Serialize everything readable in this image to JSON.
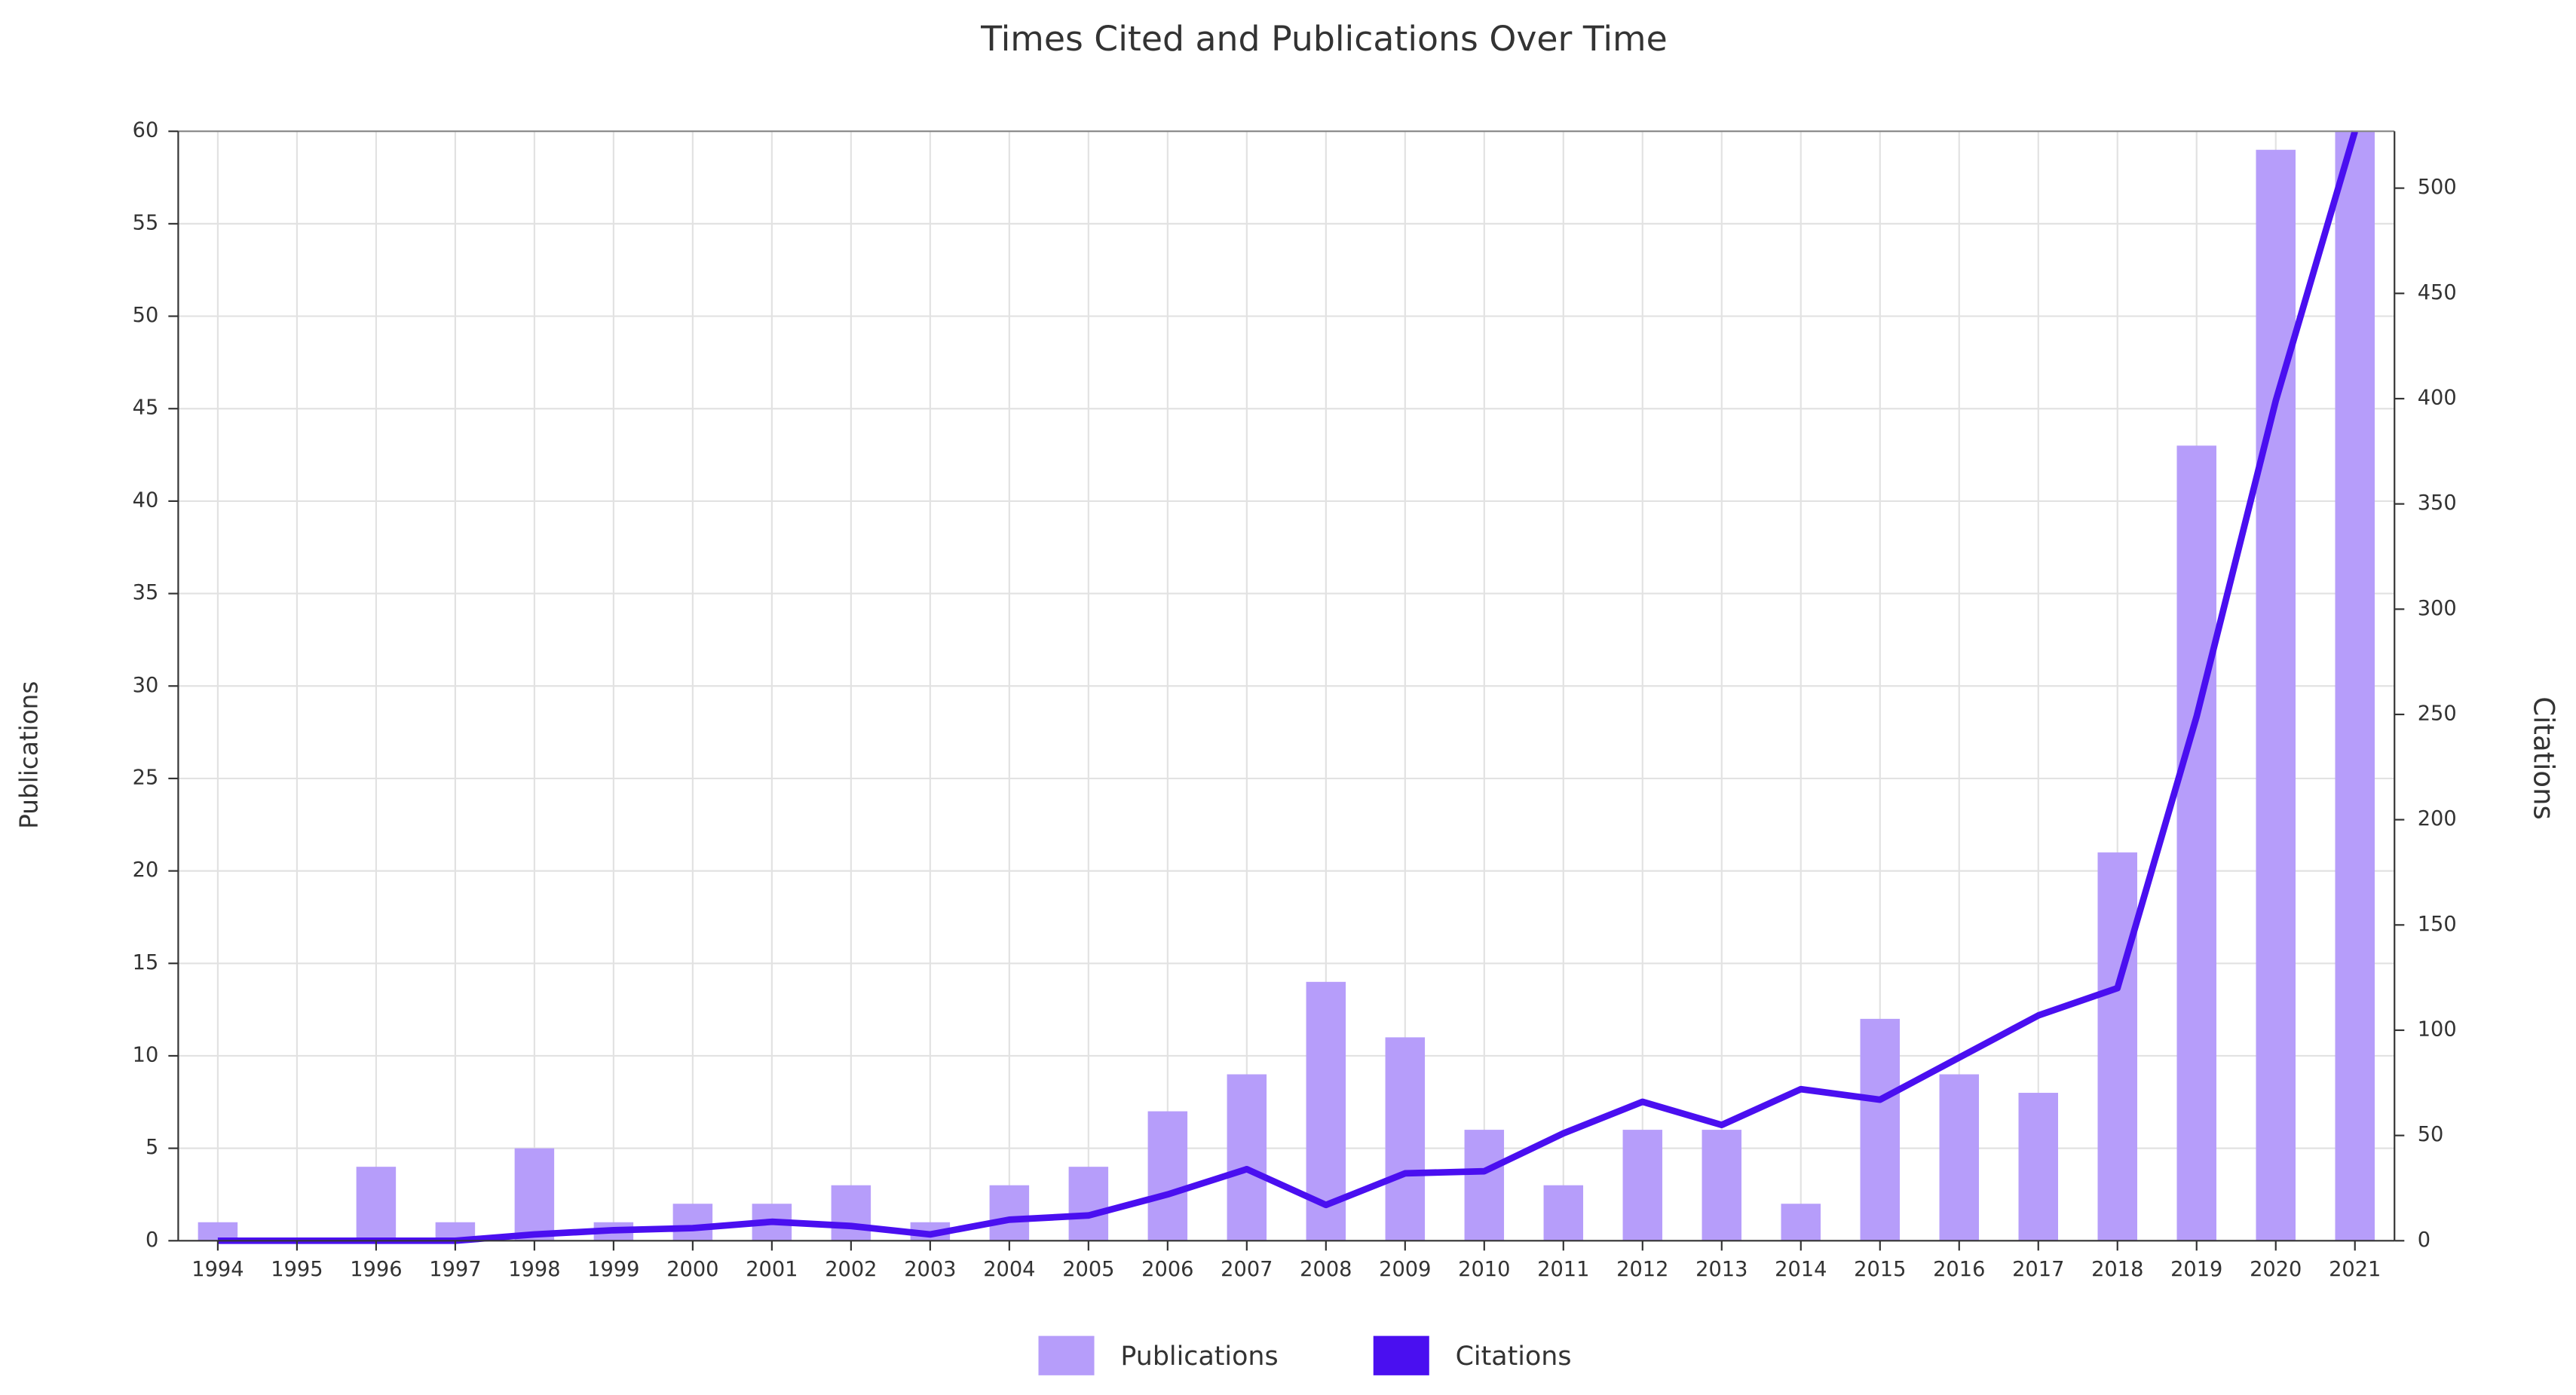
{
  "chart_data": {
    "type": "bar-line",
    "title": "Times Cited and Publications Over Time",
    "ylabel": "Publications",
    "y2label": "Citations",
    "categories": [
      "1994",
      "1995",
      "1996",
      "1997",
      "1998",
      "1999",
      "2000",
      "2001",
      "2002",
      "2003",
      "2004",
      "2005",
      "2006",
      "2007",
      "2008",
      "2009",
      "2010",
      "2011",
      "2012",
      "2013",
      "2014",
      "2015",
      "2016",
      "2017",
      "2018",
      "2019",
      "2020",
      "2021"
    ],
    "series": [
      {
        "name": "Publications",
        "type": "bar",
        "color": "#b69dfa",
        "values": [
          1,
          0,
          4,
          1,
          5,
          1,
          2,
          2,
          3,
          1,
          3,
          4,
          7,
          9,
          14,
          11,
          6,
          3,
          6,
          6,
          2,
          12,
          9,
          8,
          21,
          43,
          59,
          60
        ]
      },
      {
        "name": "Citations",
        "type": "line",
        "axis": "y2",
        "color": "#4a0ff0",
        "values": [
          0,
          0,
          0,
          0,
          3,
          5,
          6,
          9,
          7,
          3,
          10,
          12,
          22,
          34,
          17,
          32,
          33,
          51,
          66,
          55,
          72,
          67,
          87,
          107,
          120,
          249,
          399,
          527
        ]
      }
    ],
    "ylim": [
      0,
      60
    ],
    "yticks": [
      0,
      5,
      10,
      15,
      20,
      25,
      30,
      35,
      40,
      45,
      50,
      55,
      60
    ],
    "y2lim": [
      0,
      527
    ],
    "y2ticks": [
      0,
      50,
      100,
      150,
      200,
      250,
      300,
      350,
      400,
      450,
      500
    ],
    "grid": true,
    "legend": "bottom"
  }
}
